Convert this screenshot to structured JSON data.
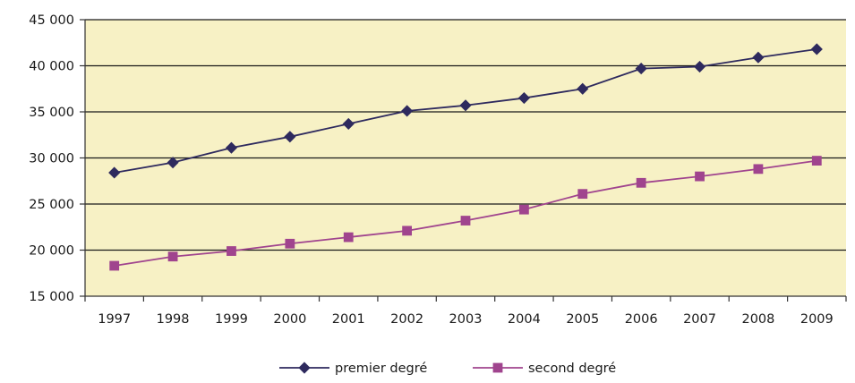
{
  "chart_data": {
    "type": "line",
    "title": "",
    "xlabel": "",
    "ylabel": "",
    "categories": [
      "1997",
      "1998",
      "1999",
      "2000",
      "2001",
      "2002",
      "2003",
      "2004",
      "2005",
      "2006",
      "2007",
      "2008",
      "2009"
    ],
    "ylim": [
      15000,
      45000
    ],
    "y_ticks": [
      15000,
      20000,
      25000,
      30000,
      35000,
      40000,
      45000
    ],
    "y_tick_labels": [
      "15 000",
      "20 000",
      "25 000",
      "30 000",
      "35 000",
      "40 000",
      "45 000"
    ],
    "grid": true,
    "legend_position": "bottom-center",
    "plot_background": "#F7F1C5",
    "series": [
      {
        "name": "premier degré",
        "color": "#2E2A5E",
        "marker": "diamond",
        "values": [
          28400,
          29500,
          31100,
          32300,
          33700,
          35100,
          35700,
          36500,
          37500,
          39700,
          39900,
          40900,
          41800
        ]
      },
      {
        "name": "second degré",
        "color": "#A0448E",
        "marker": "square",
        "values": [
          18300,
          19300,
          19900,
          20700,
          21400,
          22100,
          23200,
          24400,
          26100,
          27300,
          28000,
          28800,
          29700
        ]
      }
    ]
  }
}
